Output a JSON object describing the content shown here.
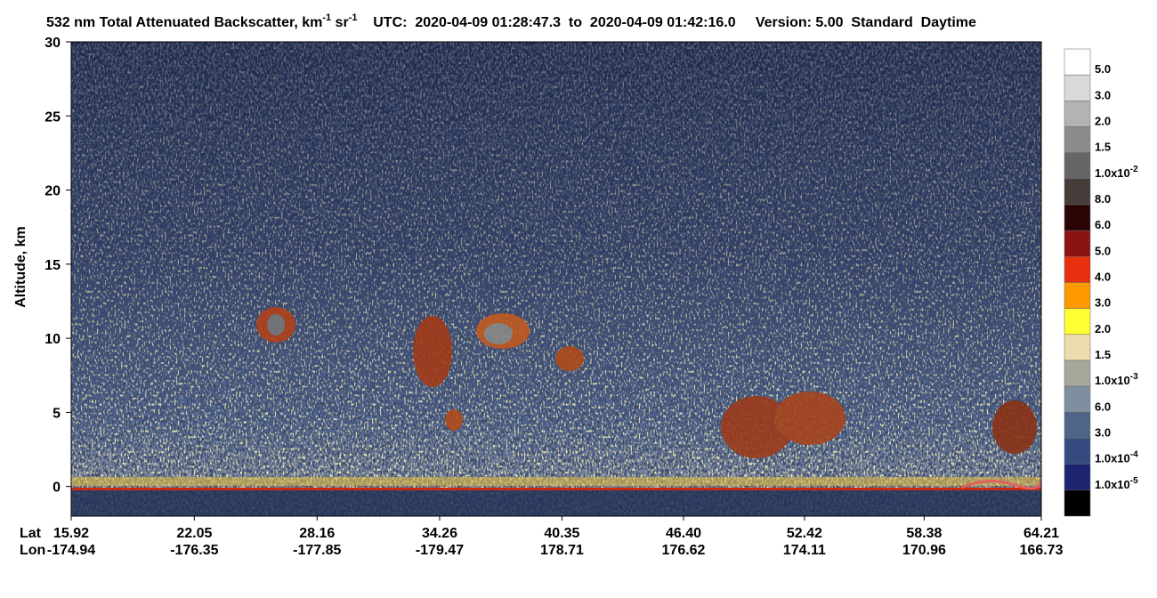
{
  "chart_data": {
    "type": "heatmap",
    "title_parts": [
      {
        "text": "532 nm Total Attenuated Backscatter, km"
      },
      {
        "text": "-1",
        "sup": true
      },
      {
        "text": " sr"
      },
      {
        "text": "-1",
        "sup": true
      },
      {
        "text": "    UTC:  2020-04-09 01:28:47.3  to  2020-04-09 01:42:16.0     Version: 5.00  Standard  Daytime"
      }
    ],
    "ylabel": "Altitude, km",
    "ylim": [
      -2,
      30
    ],
    "yticks": [
      0,
      5,
      10,
      15,
      20,
      25,
      30
    ],
    "xlim": [
      15.92,
      64.21
    ],
    "x_row_label": "Lat",
    "x2_row_label": "Lon",
    "xticks": [
      15.92,
      22.05,
      28.16,
      34.26,
      40.35,
      {
        "value": 46.4,
        "label": "46.40"
      },
      52.42,
      58.38,
      64.21
    ],
    "x2_labels": [
      "-174.94",
      "-176.35",
      "-177.85",
      "-179.47",
      "178.71",
      "176.62",
      "174.11",
      "170.96",
      "166.73"
    ],
    "colorbar": {
      "colors": [
        "#ffffff",
        "#d9d9d9",
        "#b3b3b3",
        "#8c8c8c",
        "#666666",
        "#463c3a",
        "#2a0404",
        "#8b1410",
        "#e8300f",
        "#ff9900",
        "#ffff33",
        "#ecdcae",
        "#a6a89c",
        "#7f8fa0",
        "#4f6587",
        "#354a7e",
        "#1e2470",
        "#000000"
      ],
      "labels": [
        {
          "text": "5.0"
        },
        {
          "text": "3.0"
        },
        {
          "text": "2.0"
        },
        {
          "text": "1.5"
        },
        {
          "text": "1.0x10",
          "sup": "-2"
        },
        {
          "text": "8.0"
        },
        {
          "text": "6.0"
        },
        {
          "text": "5.0"
        },
        {
          "text": "4.0"
        },
        {
          "text": "3.0"
        },
        {
          "text": "2.0"
        },
        {
          "text": "1.5"
        },
        {
          "text": "1.0x10",
          "sup": "-3"
        },
        {
          "text": "6.0"
        },
        {
          "text": "3.0"
        },
        {
          "text": "1.0x10",
          "sup": "-4"
        },
        {
          "text": "1.0x10",
          "sup": "-5"
        }
      ]
    }
  }
}
